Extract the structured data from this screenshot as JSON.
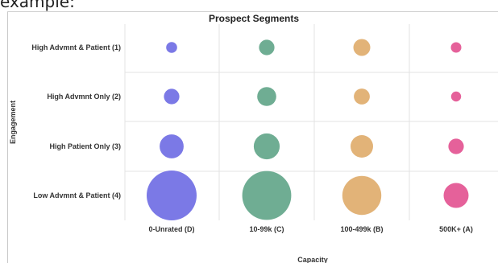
{
  "top_text": "example:",
  "chart_data": {
    "type": "scatter",
    "title": "Prospect Segments",
    "xlabel": "Capacity",
    "ylabel": "Engagement",
    "x_categories": [
      "0-Unrated (D)",
      "10-99k (C)",
      "100-499k (B)",
      "500K+ (A)"
    ],
    "y_categories": [
      "High Advmnt & Patient (1)",
      "High Advmnt Only (2)",
      "High Patient Only (3)",
      "Low Advmnt & Patient (4)"
    ],
    "series_colors": [
      "#7b79e6",
      "#6fad93",
      "#e2b378",
      "#e5619a"
    ],
    "grid": true,
    "bubble_size_relative": [
      [
        0.22,
        0.31,
        0.34,
        0.21
      ],
      [
        0.31,
        0.38,
        0.32,
        0.2
      ],
      [
        0.48,
        0.52,
        0.45,
        0.31
      ],
      [
        1.0,
        0.98,
        0.78,
        0.5
      ]
    ]
  }
}
